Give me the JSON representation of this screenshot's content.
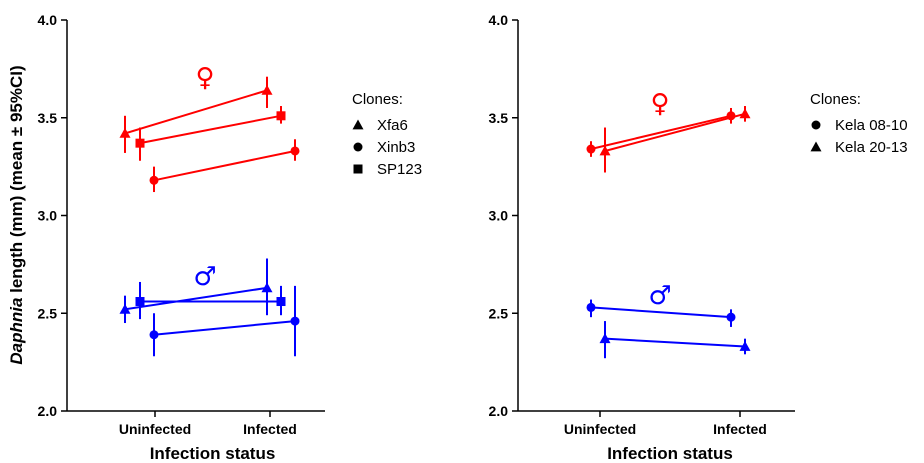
{
  "y_axis_title_italic": "Daphnia",
  "y_axis_title_rest": " length (mm) (mean ± 95%CI)",
  "colors": {
    "female": "#ff0000",
    "male": "#0000ff",
    "axis": "#000000"
  },
  "chart_data": [
    {
      "type": "line",
      "xlabel": "Infection status",
      "categories": [
        "Uninfected",
        "Infected"
      ],
      "ylim": [
        2.0,
        4.0
      ],
      "yticks": [
        "2.0",
        "2.5",
        "3.0",
        "3.5",
        "4.0"
      ],
      "legend_title": "Clones:",
      "legend_placement": "right",
      "legend": [
        {
          "name": "Xfa6",
          "marker": "triangle"
        },
        {
          "name": "Xinb3",
          "marker": "circle"
        },
        {
          "name": "SP123",
          "marker": "square"
        }
      ],
      "annotations": {
        "female_symbol": "♀",
        "male_symbol": "♂"
      },
      "series": [
        {
          "clone": "Xfa6",
          "sex": "female",
          "marker": "triangle",
          "values": [
            3.42,
            3.64
          ],
          "ci_low": [
            3.32,
            3.55
          ],
          "ci_high": [
            3.51,
            3.71
          ]
        },
        {
          "clone": "Xinb3",
          "sex": "female",
          "marker": "circle",
          "values": [
            3.18,
            3.33
          ],
          "ci_low": [
            3.12,
            3.28
          ],
          "ci_high": [
            3.25,
            3.39
          ]
        },
        {
          "clone": "SP123",
          "sex": "female",
          "marker": "square",
          "values": [
            3.37,
            3.51
          ],
          "ci_low": [
            3.28,
            3.47
          ],
          "ci_high": [
            3.45,
            3.56
          ]
        },
        {
          "clone": "Xfa6",
          "sex": "male",
          "marker": "triangle",
          "values": [
            2.52,
            2.63
          ],
          "ci_low": [
            2.45,
            2.49
          ],
          "ci_high": [
            2.59,
            2.78
          ]
        },
        {
          "clone": "Xinb3",
          "sex": "male",
          "marker": "circle",
          "values": [
            2.39,
            2.46
          ],
          "ci_low": [
            2.28,
            2.28
          ],
          "ci_high": [
            2.5,
            2.64
          ]
        },
        {
          "clone": "SP123",
          "sex": "male",
          "marker": "square",
          "values": [
            2.56,
            2.56
          ],
          "ci_low": [
            2.47,
            2.49
          ],
          "ci_high": [
            2.66,
            2.64
          ]
        }
      ]
    },
    {
      "type": "line",
      "xlabel": "Infection status",
      "categories": [
        "Uninfected",
        "Infected"
      ],
      "ylim": [
        2.0,
        4.0
      ],
      "yticks": [
        "2.0",
        "2.5",
        "3.0",
        "3.5",
        "4.0"
      ],
      "legend_title": "Clones:",
      "legend_placement": "right",
      "legend": [
        {
          "name": "Kela 08-10",
          "marker": "circle"
        },
        {
          "name": "Kela 20-13",
          "marker": "triangle"
        }
      ],
      "annotations": {
        "female_symbol": "♀",
        "male_symbol": "♂"
      },
      "series": [
        {
          "clone": "Kela 08-10",
          "sex": "female",
          "marker": "circle",
          "values": [
            3.34,
            3.51
          ],
          "ci_low": [
            3.3,
            3.47
          ],
          "ci_high": [
            3.38,
            3.55
          ]
        },
        {
          "clone": "Kela 20-13",
          "sex": "female",
          "marker": "triangle",
          "values": [
            3.33,
            3.52
          ],
          "ci_low": [
            3.22,
            3.48
          ],
          "ci_high": [
            3.45,
            3.56
          ]
        },
        {
          "clone": "Kela 08-10",
          "sex": "male",
          "marker": "circle",
          "values": [
            2.53,
            2.48
          ],
          "ci_low": [
            2.48,
            2.43
          ],
          "ci_high": [
            2.57,
            2.52
          ]
        },
        {
          "clone": "Kela 20-13",
          "sex": "male",
          "marker": "triangle",
          "values": [
            2.37,
            2.33
          ],
          "ci_low": [
            2.27,
            2.29
          ],
          "ci_high": [
            2.46,
            2.37
          ]
        }
      ]
    }
  ]
}
